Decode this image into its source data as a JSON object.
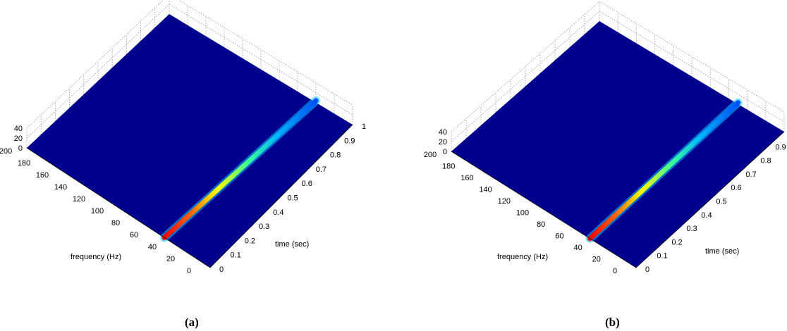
{
  "chart_data": [
    {
      "type": "surface3d",
      "panel_label": "(a)",
      "xlabel": "time (sec)",
      "ylabel": "frequency (Hz)",
      "zlabel": "",
      "x_ticks": [
        "0",
        "0.1",
        "0.2",
        "0.3",
        "0.4",
        "0.5",
        "0.6",
        "0.7",
        "0.8",
        "0.9",
        "1"
      ],
      "y_ticks": [
        "0",
        "20",
        "40",
        "60",
        "80",
        "100",
        "120",
        "140",
        "160",
        "180",
        "200"
      ],
      "z_ticks": [
        "0",
        "20",
        "40"
      ],
      "xlim": [
        0,
        1
      ],
      "ylim": [
        0,
        200
      ],
      "zlim": [
        0,
        40
      ],
      "colormap": "jet",
      "background_color": "#00008f",
      "ridge": {
        "description_values": {
          "time_start": 0.0,
          "time_end": 1.0,
          "freq_start": 50,
          "freq_end": 40
        },
        "points": [
          {
            "t": 0.0,
            "f": 50
          },
          {
            "t": 0.2,
            "f": 48
          },
          {
            "t": 0.4,
            "f": 46
          },
          {
            "t": 0.6,
            "f": 44
          },
          {
            "t": 0.8,
            "f": 42
          },
          {
            "t": 1.0,
            "f": 40
          }
        ]
      }
    },
    {
      "type": "surface3d",
      "panel_label": "(b)",
      "xlabel": "time (sec)",
      "ylabel": "frequency (Hz)",
      "zlabel": "",
      "x_ticks": [
        "0",
        "0.1",
        "0.2",
        "0.3",
        "0.4",
        "0.5",
        "0.6",
        "0.7",
        "0.8",
        "0.9"
      ],
      "y_ticks": [
        "0",
        "20",
        "40",
        "60",
        "80",
        "100",
        "120",
        "140",
        "160",
        "180",
        "200"
      ],
      "z_ticks": [
        "0",
        "20",
        "40"
      ],
      "xlim": [
        0,
        1
      ],
      "ylim": [
        0,
        200
      ],
      "zlim": [
        0,
        40
      ],
      "colormap": "jet",
      "background_color": "#00008f",
      "ridge": {
        "points": [
          {
            "t": 0.0,
            "f": 50
          },
          {
            "t": 0.2,
            "f": 50
          },
          {
            "t": 0.4,
            "f": 50
          },
          {
            "t": 0.6,
            "f": 50
          },
          {
            "t": 0.8,
            "f": 50
          },
          {
            "t": 1.0,
            "f": 50
          }
        ]
      }
    }
  ]
}
